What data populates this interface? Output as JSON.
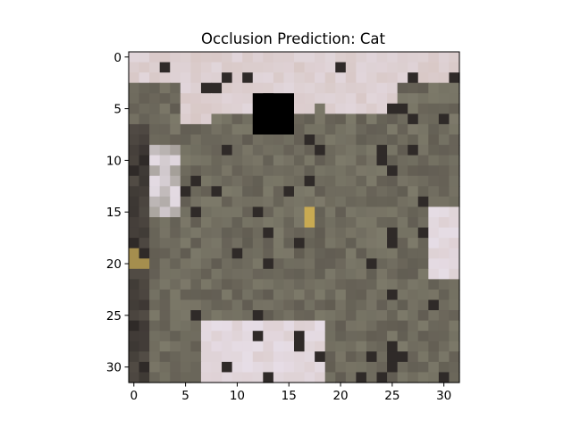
{
  "figure": {
    "title": "Occlusion Prediction: Cat",
    "x_ticks": [
      "0",
      "5",
      "10",
      "15",
      "20",
      "25",
      "30"
    ],
    "y_ticks": [
      "0",
      "5",
      "10",
      "15",
      "20",
      "25",
      "30"
    ],
    "image_grid_size": 32,
    "occlusion_patch": {
      "row_start": 4,
      "row_end": 7,
      "col_start": 12,
      "col_end": 15,
      "color": "#000000"
    },
    "palette": {
      "background_light": "#d8c8c6",
      "fur_gray": "#7d7a6a",
      "fur_dark": "#524c45",
      "shadow": "#2f2a28",
      "highlight_yellow": "#c8aa52",
      "light_patch": "#e6dde6"
    }
  }
}
